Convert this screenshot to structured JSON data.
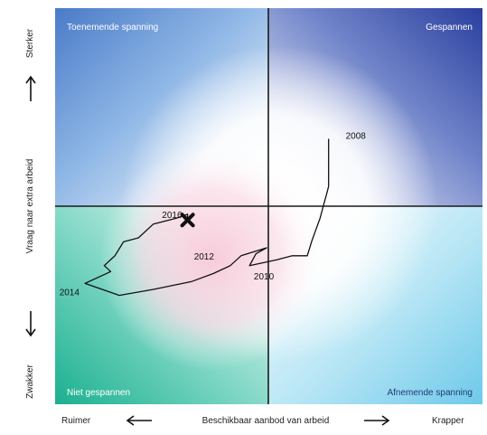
{
  "chart_data": {
    "type": "line",
    "quadrants": {
      "top_left": "Toenemende spanning",
      "top_right": "Gespannen",
      "bottom_left": "Niet gespannen",
      "bottom_right": "Afnemende spanning"
    },
    "xlabel": "Beschikbaar aanbod van arbeid",
    "x_left": "Ruimer",
    "x_right": "Krapper",
    "ylabel": "Vraag naar extra arbeid",
    "y_top": "Sterker",
    "y_bottom": "Zwakker",
    "xlim": [
      -1,
      1
    ],
    "ylim": [
      -1,
      1
    ],
    "series": [
      {
        "points": [
          {
            "x": 0.28,
            "y": 0.34
          },
          {
            "x": 0.28,
            "y": 0.28
          },
          {
            "x": 0.28,
            "y": 0.2
          },
          {
            "x": 0.28,
            "y": 0.1
          },
          {
            "x": 0.27,
            "y": 0.06
          },
          {
            "x": 0.26,
            "y": 0.02
          },
          {
            "x": 0.25,
            "y": -0.02
          },
          {
            "x": 0.24,
            "y": -0.06
          },
          {
            "x": 0.22,
            "y": -0.12
          },
          {
            "x": 0.2,
            "y": -0.18
          },
          {
            "x": 0.18,
            "y": -0.25
          },
          {
            "x": 0.11,
            "y": -0.25
          },
          {
            "x": 0.04,
            "y": -0.27
          },
          {
            "x": -0.09,
            "y": -0.3
          },
          {
            "x": -0.06,
            "y": -0.24
          },
          {
            "x": -0.01,
            "y": -0.21
          },
          {
            "x": -0.13,
            "y": -0.25
          },
          {
            "x": -0.18,
            "y": -0.3
          },
          {
            "x": -0.26,
            "y": -0.34
          },
          {
            "x": -0.36,
            "y": -0.38
          },
          {
            "x": -0.54,
            "y": -0.42
          },
          {
            "x": -0.7,
            "y": -0.45
          },
          {
            "x": -0.86,
            "y": -0.39
          },
          {
            "x": -0.84,
            "y": -0.38
          },
          {
            "x": -0.74,
            "y": -0.33
          },
          {
            "x": -0.77,
            "y": -0.3
          },
          {
            "x": -0.73,
            "y": -0.26
          },
          {
            "x": -0.72,
            "y": -0.25
          },
          {
            "x": -0.68,
            "y": -0.18
          },
          {
            "x": -0.61,
            "y": -0.16
          },
          {
            "x": -0.54,
            "y": -0.09
          },
          {
            "x": -0.43,
            "y": -0.06
          },
          {
            "x": -0.38,
            "y": -0.04
          },
          {
            "x": -0.38,
            "y": -0.07
          }
        ]
      }
    ],
    "annotations": [
      {
        "text": "2008",
        "x": 0.36,
        "y": 0.34
      },
      {
        "text": "2010",
        "x": -0.07,
        "y": -0.37
      },
      {
        "text": "2012",
        "x": -0.35,
        "y": -0.27
      },
      {
        "text": "2014",
        "x": -0.98,
        "y": -0.45
      },
      {
        "text": "2016",
        "x": -0.5,
        "y": -0.06
      }
    ],
    "marker": {
      "symbol": "x",
      "x": -0.38,
      "y": -0.07
    }
  }
}
